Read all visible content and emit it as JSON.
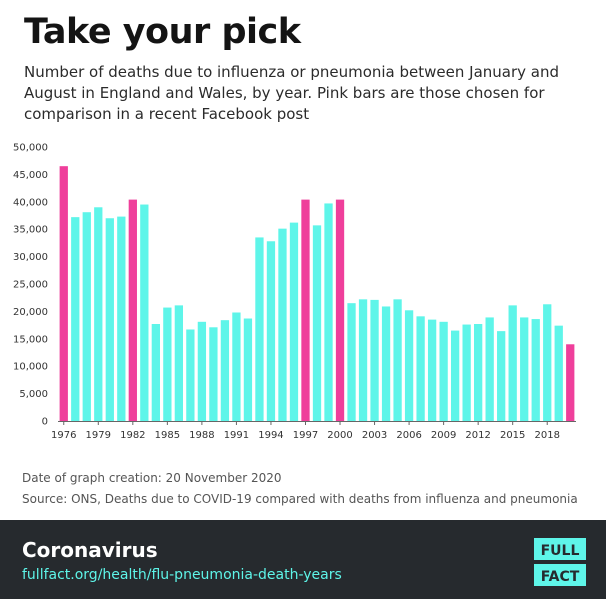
{
  "header": {
    "title": "Take your pick",
    "subtitle": "Number of deaths due to influenza or pneumonia between January and August in England and Wales, by year. Pink bars are those chosen for comparison in a recent Facebook post"
  },
  "meta": {
    "date_line": "Date of graph creation: 20 November 2020",
    "source_line": "Source: ONS, Deaths due to COVID-19 compared with deaths from influenza and pneumonia"
  },
  "footer": {
    "section": "Coronavirus",
    "link": "fullfact.org/health/flu-pneumonia-death-years",
    "logo_top": "FULL",
    "logo_bottom": "FACT"
  },
  "colors": {
    "normal_bar": "#5ef5e9",
    "highlight_bar": "#ef3f9b",
    "footer_bg": "#262a2e",
    "accent": "#5ef5e9"
  },
  "chart_data": {
    "type": "bar",
    "title": "",
    "xlabel": "",
    "ylabel": "",
    "ylim": [
      0,
      50000
    ],
    "yticks": [
      0,
      5000,
      10000,
      15000,
      20000,
      25000,
      30000,
      35000,
      40000,
      45000,
      50000
    ],
    "ytick_labels": [
      "0",
      "5,000",
      "10,000",
      "15,000",
      "20,000",
      "25,000",
      "30,000",
      "35,000",
      "40,000",
      "45,000",
      "50,000"
    ],
    "xtick_labels": [
      "1976",
      "1979",
      "1982",
      "1985",
      "1988",
      "1991",
      "1994",
      "1997",
      "2000",
      "2003",
      "2006",
      "2009",
      "2012",
      "2015",
      "2018"
    ],
    "grid": false,
    "categories": [
      "1976",
      "1977",
      "1978",
      "1979",
      "1980",
      "1981",
      "1982",
      "1983",
      "1984",
      "1985",
      "1986",
      "1987",
      "1988",
      "1989",
      "1990",
      "1991",
      "1992",
      "1993",
      "1994",
      "1995",
      "1996",
      "1997",
      "1998",
      "1999",
      "2000",
      "2001",
      "2002",
      "2003",
      "2004",
      "2005",
      "2006",
      "2007",
      "2008",
      "2009",
      "2010",
      "2011",
      "2012",
      "2013",
      "2014",
      "2015",
      "2016",
      "2017",
      "2018",
      "2019",
      "2020"
    ],
    "values": [
      46500,
      37200,
      38100,
      39000,
      37000,
      37300,
      40400,
      39500,
      17700,
      20700,
      21100,
      16700,
      18100,
      17100,
      18400,
      19800,
      18700,
      33500,
      32800,
      35100,
      36200,
      40400,
      35700,
      39700,
      40400,
      21500,
      22200,
      22100,
      20900,
      22200,
      20200,
      19100,
      18500,
      18100,
      16500,
      17600,
      17700,
      18900,
      16400,
      21100,
      18900,
      18600,
      21300,
      17400,
      14000
    ],
    "highlighted": [
      "1976",
      "1982",
      "1997",
      "2000",
      "2020"
    ]
  }
}
